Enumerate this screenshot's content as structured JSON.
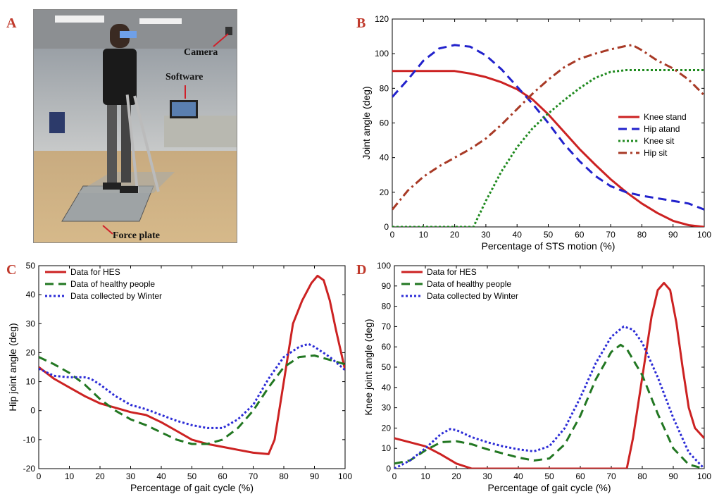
{
  "panels": {
    "a_letter": "A",
    "b_letter": "B",
    "c_letter": "C",
    "d_letter": "D"
  },
  "photo": {
    "camera_label": "Camera",
    "software_label": "Software",
    "force_plate_label": "Force plate"
  },
  "colors": {
    "red": "#cc2222",
    "blue": "#2222cc",
    "green": "#227722",
    "brown": "#a83a26",
    "dotted_green": "#1f8a1f",
    "dotted_blue": "#2b2bd6"
  },
  "chart_data": [
    {
      "id": "B",
      "type": "line",
      "xlabel": "Percentage of STS motion (%)",
      "ylabel": "Joint angle (deg)",
      "xlim": [
        0,
        100
      ],
      "ylim": [
        0,
        120
      ],
      "xticks": [
        0,
        10,
        20,
        30,
        40,
        50,
        60,
        70,
        80,
        90,
        100
      ],
      "yticks": [
        0,
        20,
        40,
        60,
        80,
        100,
        120
      ],
      "legend_position": "center-right",
      "series": [
        {
          "name": "Knee stand",
          "color": "#cc2222",
          "style": "solid",
          "x": [
            0,
            5,
            10,
            15,
            20,
            25,
            30,
            35,
            40,
            45,
            50,
            55,
            60,
            65,
            70,
            75,
            80,
            85,
            90,
            95,
            100
          ],
          "y": [
            90,
            90,
            90,
            90,
            90,
            88.5,
            86.5,
            83.5,
            79.5,
            73.5,
            65,
            55,
            45,
            36,
            27.5,
            20,
            13.5,
            8,
            3.5,
            1,
            0
          ]
        },
        {
          "name": "Hip atand",
          "color": "#2222cc",
          "style": "dashed",
          "x": [
            0,
            5,
            10,
            15,
            20,
            25,
            30,
            35,
            40,
            45,
            50,
            55,
            60,
            65,
            70,
            75,
            80,
            85,
            90,
            95,
            100
          ],
          "y": [
            75,
            85,
            96,
            103,
            105,
            104,
            99,
            91,
            81,
            71,
            60,
            48,
            38,
            29.5,
            23.5,
            20,
            18,
            16.5,
            15,
            13.5,
            10
          ]
        },
        {
          "name": "Knee sit",
          "color": "#1f8a1f",
          "style": "dotted",
          "x": [
            0,
            10,
            20,
            24,
            26,
            30,
            35,
            40,
            45,
            50,
            55,
            60,
            65,
            70,
            75,
            80,
            85,
            90,
            95,
            100
          ],
          "y": [
            0,
            0,
            0,
            0,
            0,
            15,
            32,
            46,
            57,
            65.5,
            73,
            80,
            86,
            89.5,
            90.5,
            90.5,
            90.5,
            90.5,
            90.5,
            90.5
          ]
        },
        {
          "name": "Hip sit",
          "color": "#a83a26",
          "style": "dashdot",
          "x": [
            0,
            5,
            10,
            15,
            20,
            25,
            30,
            35,
            40,
            45,
            50,
            55,
            60,
            65,
            70,
            75,
            77,
            80,
            85,
            90,
            95,
            100
          ],
          "y": [
            10,
            21,
            29,
            35,
            40,
            45,
            51,
            59,
            68,
            77,
            85,
            92,
            97,
            100,
            102.5,
            104.5,
            105,
            102,
            96,
            91.5,
            85,
            76
          ]
        }
      ]
    },
    {
      "id": "C",
      "type": "line",
      "xlabel": "Percentage of gait cycle (%)",
      "ylabel": "Hip joint angle (deg)",
      "xlim": [
        0,
        100
      ],
      "ylim": [
        -20,
        50
      ],
      "xticks": [
        0,
        10,
        20,
        30,
        40,
        50,
        60,
        70,
        80,
        90,
        100
      ],
      "yticks": [
        -20,
        -10,
        0,
        10,
        20,
        30,
        40,
        50
      ],
      "legend_position": "top-left",
      "series": [
        {
          "name": "Data for HES",
          "color": "#cc2222",
          "style": "solid",
          "x": [
            0,
            5,
            10,
            15,
            20,
            25,
            30,
            35,
            40,
            45,
            50,
            55,
            60,
            65,
            70,
            75,
            77,
            80,
            83,
            86,
            89,
            91,
            93,
            95,
            97,
            100
          ],
          "y": [
            15,
            11,
            8,
            5,
            2.5,
            1,
            -0.5,
            -1.5,
            -4,
            -7,
            -10,
            -11.5,
            -12.5,
            -13.5,
            -14.5,
            -15,
            -10,
            10,
            30,
            38,
            44,
            46.5,
            45,
            38,
            28,
            14
          ]
        },
        {
          "name": "Data of healthy people",
          "color": "#227722",
          "style": "dashed",
          "x": [
            0,
            5,
            10,
            15,
            20,
            25,
            30,
            35,
            40,
            45,
            50,
            55,
            60,
            65,
            70,
            75,
            80,
            85,
            90,
            95,
            100
          ],
          "y": [
            18.5,
            16,
            13,
            9,
            4,
            0,
            -3,
            -5,
            -7.5,
            -10,
            -11.5,
            -11.5,
            -10,
            -6,
            0,
            8,
            15,
            18.5,
            19,
            17.5,
            16
          ]
        },
        {
          "name": "Data collected by Winter",
          "color": "#2b2bd6",
          "style": "dotted",
          "x": [
            0,
            5,
            10,
            15,
            17,
            20,
            25,
            30,
            35,
            40,
            45,
            50,
            55,
            60,
            65,
            70,
            75,
            80,
            85,
            88,
            90,
            95,
            100
          ],
          "y": [
            14.5,
            12,
            11.5,
            11.5,
            11,
            9,
            5,
            2,
            0.5,
            -1.5,
            -3.5,
            -5,
            -6,
            -6,
            -3,
            2,
            11,
            18.5,
            22,
            23,
            22,
            18.5,
            14
          ]
        }
      ]
    },
    {
      "id": "D",
      "type": "line",
      "xlabel": "Percentage of gait cycle (%)",
      "ylabel": "Knee joint angle (deg)",
      "xlim": [
        0,
        100
      ],
      "ylim": [
        0,
        100
      ],
      "xticks": [
        0,
        10,
        20,
        30,
        40,
        50,
        60,
        70,
        80,
        90,
        100
      ],
      "yticks": [
        0,
        10,
        20,
        30,
        40,
        50,
        60,
        70,
        80,
        90,
        100
      ],
      "legend_position": "top-left",
      "series": [
        {
          "name": "Data for HES",
          "color": "#cc2222",
          "style": "solid",
          "x": [
            0,
            5,
            10,
            15,
            20,
            25,
            30,
            40,
            50,
            60,
            70,
            75,
            77,
            80,
            83,
            85,
            87,
            89,
            91,
            93,
            95,
            97,
            100
          ],
          "y": [
            15,
            13,
            11,
            7,
            2.5,
            0,
            0,
            0,
            0,
            0,
            0,
            0,
            15,
            45,
            75,
            88,
            91.5,
            88,
            72,
            50,
            30,
            20,
            15
          ]
        },
        {
          "name": "Data of healthy people",
          "color": "#227722",
          "style": "dashed",
          "x": [
            0,
            5,
            10,
            15,
            20,
            25,
            30,
            35,
            40,
            45,
            50,
            55,
            60,
            65,
            70,
            73,
            75,
            80,
            85,
            90,
            95,
            100
          ],
          "y": [
            2.5,
            4,
            9,
            13,
            13.5,
            12,
            9.5,
            7.5,
            5.5,
            4,
            5,
            12,
            26,
            44,
            57.5,
            61,
            59,
            46,
            27,
            10,
            2,
            0
          ]
        },
        {
          "name": "Data collected by Winter",
          "color": "#2b2bd6",
          "style": "dotted",
          "x": [
            0,
            5,
            10,
            15,
            18,
            20,
            25,
            30,
            35,
            40,
            45,
            50,
            55,
            60,
            65,
            70,
            74,
            77,
            80,
            85,
            90,
            95,
            100
          ],
          "y": [
            0,
            4,
            10,
            17,
            19.5,
            19,
            15.5,
            13,
            11,
            9.5,
            8.5,
            11,
            20,
            35,
            52,
            65,
            70,
            68.5,
            62,
            45,
            25,
            8,
            0
          ]
        }
      ]
    }
  ]
}
